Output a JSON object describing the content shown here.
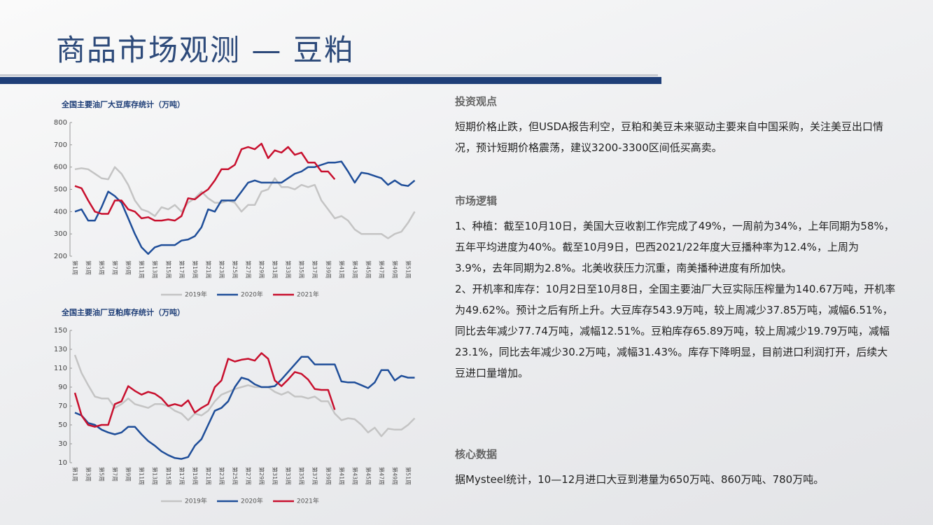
{
  "title": "商品市场观测 — 豆粕",
  "chart_data": [
    {
      "type": "line",
      "title": "全国主要油厂大豆库存统计（万吨）",
      "categories": [
        "第1周",
        null,
        "第3周",
        null,
        "第5周",
        null,
        "第7周",
        null,
        "第9周",
        null,
        "第11周",
        null,
        "第13周",
        null,
        "第15周",
        null,
        "第17周",
        null,
        "第19周",
        null,
        "第21周",
        null,
        "第23周",
        null,
        "第25周",
        null,
        "第27周",
        null,
        "第29周",
        null,
        "第31周",
        null,
        "第33周",
        null,
        "第35周",
        null,
        "第37周",
        null,
        "第39周",
        null,
        "第41周",
        null,
        "第43周",
        null,
        "第45周",
        null,
        "第47周",
        null,
        "第49周",
        null,
        "第51周",
        null
      ],
      "series": [
        {
          "name": "2019年",
          "color": "#c4c4c4",
          "values": [
            590,
            595,
            590,
            570,
            550,
            545,
            600,
            570,
            520,
            450,
            410,
            400,
            380,
            420,
            410,
            430,
            400,
            440,
            460,
            490,
            460,
            440,
            440,
            450,
            440,
            400,
            430,
            430,
            490,
            500,
            550,
            510,
            510,
            500,
            520,
            510,
            520,
            450,
            410,
            370,
            380,
            360,
            320,
            300,
            300,
            300,
            300,
            280,
            300,
            310,
            350,
            400
          ]
        },
        {
          "name": "2020年",
          "color": "#1f4e99",
          "values": [
            400,
            410,
            360,
            360,
            420,
            490,
            470,
            440,
            370,
            300,
            240,
            210,
            240,
            250,
            250,
            250,
            270,
            275,
            290,
            330,
            410,
            400,
            450,
            450,
            450,
            490,
            530,
            540,
            530,
            530,
            530,
            530,
            550,
            570,
            580,
            600,
            600,
            610,
            620,
            620,
            625,
            580,
            530,
            575,
            570,
            560,
            550,
            520,
            540,
            520,
            515,
            540
          ]
        },
        {
          "name": "2021年",
          "color": "#c8102e",
          "values": [
            515,
            505,
            450,
            400,
            390,
            390,
            450,
            450,
            410,
            400,
            370,
            375,
            360,
            360,
            365,
            360,
            380,
            460,
            455,
            480,
            500,
            540,
            590,
            590,
            610,
            680,
            690,
            680,
            705,
            640,
            675,
            665,
            690,
            655,
            665,
            620,
            620,
            580,
            580,
            545,
            null,
            null,
            null,
            null,
            null,
            null,
            null,
            null,
            null,
            null,
            null,
            null
          ]
        }
      ],
      "ylim": [
        200,
        800
      ],
      "yticks": [
        200,
        300,
        400,
        500,
        600,
        700,
        800
      ],
      "legend": "bottom"
    },
    {
      "type": "line",
      "title": "全国主要油厂豆粕库存统计（万吨）",
      "categories": [
        "第1周",
        null,
        "第3周",
        null,
        "第5周",
        null,
        "第7周",
        null,
        "第9周",
        null,
        "第11周",
        null,
        "第13周",
        null,
        "第15周",
        null,
        "第17周",
        null,
        "第19周",
        null,
        "第21周",
        null,
        "第23周",
        null,
        "第25周",
        null,
        "第27周",
        null,
        "第29周",
        null,
        "第31周",
        null,
        "第33周",
        null,
        "第35周",
        null,
        "第37周",
        null,
        "第39周",
        null,
        "第41周",
        null,
        "第43周",
        null,
        "第45周",
        null,
        "第47周",
        null,
        "第49周",
        null,
        "第51周",
        null
      ],
      "series": [
        {
          "name": "2019年",
          "color": "#c4c4c4",
          "values": [
            124,
            105,
            92,
            80,
            78,
            78,
            68,
            72,
            78,
            72,
            70,
            68,
            72,
            72,
            70,
            65,
            62,
            55,
            62,
            60,
            65,
            75,
            82,
            85,
            88,
            90,
            92,
            90,
            90,
            90,
            85,
            82,
            85,
            80,
            80,
            78,
            80,
            75,
            75,
            62,
            55,
            57,
            56,
            50,
            42,
            47,
            38,
            46,
            45,
            45,
            50,
            57
          ]
        },
        {
          "name": "2020年",
          "color": "#1f4e99",
          "values": [
            63,
            60,
            52,
            50,
            45,
            42,
            40,
            42,
            48,
            48,
            40,
            33,
            28,
            22,
            18,
            15,
            14,
            16,
            28,
            35,
            50,
            65,
            68,
            75,
            90,
            100,
            98,
            93,
            90,
            90,
            91,
            98,
            106,
            114,
            122,
            122,
            114,
            114,
            114,
            114,
            96,
            95,
            95,
            92,
            89,
            95,
            108,
            108,
            97,
            102,
            100,
            100
          ]
        },
        {
          "name": "2021年",
          "color": "#c8102e",
          "values": [
            84,
            60,
            50,
            48,
            50,
            50,
            72,
            75,
            91,
            86,
            82,
            85,
            83,
            78,
            70,
            72,
            70,
            76,
            63,
            68,
            72,
            90,
            97,
            120,
            117,
            119,
            120,
            118,
            126,
            120,
            97,
            91,
            98,
            106,
            104,
            98,
            88,
            87,
            87,
            66,
            null,
            null,
            null,
            null,
            null,
            null,
            null,
            null,
            null,
            null,
            null,
            null
          ]
        }
      ],
      "ylim": [
        10,
        150
      ],
      "yticks": [
        10,
        30,
        50,
        70,
        90,
        110,
        130,
        150
      ],
      "legend": "bottom"
    }
  ],
  "sections": [
    {
      "heading": "投资观点",
      "paragraphs": [
        "短期价格止跌，但USDA报告利空，豆粕和美豆未来驱动主要来自中国采购，关注美豆出口情况，预计短期价格震荡，建议3200-3300区间低买高卖。"
      ]
    },
    {
      "heading": "市场逻辑",
      "paragraphs": [
        "1、种植：截至10月10日，美国大豆收割工作完成了49%，一周前为34%，上年同期为58%，五年平均进度为40%。截至10月9日，巴西2021/22年度大豆播种率为12.4%，上周为3.9%，去年同期为2.8%。北美收获压力沉重，南美播种进度有所加快。",
        "2、开机率和库存：10月2日至10月8日，全国主要油厂大豆实际压榨量为140.67万吨，开机率为49.62%。预计之后有所上升。大豆库存543.9万吨，较上周减少37.85万吨，减幅6.51%，同比去年减少77.74万吨，减幅12.51%。豆粕库存65.89万吨，较上周减少19.79万吨，减幅23.1%，同比去年减少30.2万吨，减幅31.43%。库存下降明显，目前进口利润打开，后续大豆进口量增加。"
      ]
    },
    {
      "heading": "核心数据",
      "paragraphs": [
        "据Mysteel统计，10—12月进口大豆到港量为650万吨、860万吨、780万吨。"
      ]
    }
  ]
}
